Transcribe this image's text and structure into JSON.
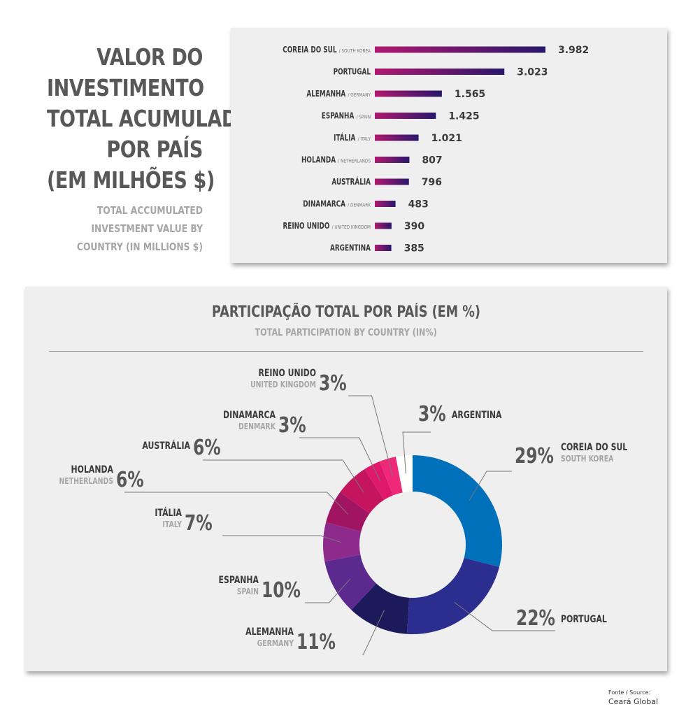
{
  "title": {
    "main_lines": [
      "VALOR DO",
      "INVESTIMENTO",
      "TOTAL ACUMULADO",
      "POR PAÍS",
      "(EM MILHÕES $)"
    ],
    "sub_lines": [
      "TOTAL ACCUMULATED",
      "INVESTMENT VALUE BY",
      "COUNTRY (IN MILLIONS $)"
    ]
  },
  "colors": {
    "bar_gradient_start": "#b0186f",
    "bar_gradient_end": "#28176a",
    "text_dark": "#585858",
    "text_light": "#a6a6a6"
  },
  "chart_data": [
    {
      "type": "bar",
      "orientation": "horizontal",
      "categories": [
        "COREIA DO SUL",
        "PORTUGAL",
        "ALEMANHA",
        "ESPANHA",
        "ITÁLIA",
        "HOLANDA",
        "AUSTRÁLIA",
        "DINAMARCA",
        "REINO UNIDO",
        "ARGENTINA"
      ],
      "category_subtitles": [
        "/ SOUTH KOREA",
        "",
        "/ GERMANY",
        "/ SPAIN",
        "/ ITALY",
        "/ NETHERLANDS",
        "",
        "/ DENMARK",
        "/ UNITED KINGDOM",
        ""
      ],
      "values": [
        3982,
        3023,
        1565,
        1425,
        1021,
        807,
        796,
        483,
        390,
        385
      ],
      "value_labels": [
        "3.982",
        "3.023",
        "1.565",
        "1.425",
        "1.021",
        "807",
        "796",
        "483",
        "390",
        "385"
      ],
      "xlim": [
        0,
        3982
      ],
      "grid": false
    },
    {
      "type": "pie",
      "style": "donut",
      "title": "PARTICIPAÇÃO TOTAL POR PAÍS (EM %)",
      "subtitle": "TOTAL PARTICIPATION BY COUNTRY (IN%)",
      "slices": [
        {
          "name": "COREIA DO SUL",
          "subname": "SOUTH KOREA",
          "label": "29%",
          "value": 29,
          "color": "#0070bb"
        },
        {
          "name": "PORTUGAL",
          "subname": "",
          "label": "22%",
          "value": 22,
          "color": "#2b2e8e"
        },
        {
          "name": "ALEMANHA",
          "subname": "GERMANY",
          "label": "11%",
          "value": 11,
          "color": "#1d1a5c"
        },
        {
          "name": "ESPANHA",
          "subname": "SPAIN",
          "label": "10%",
          "value": 10,
          "color": "#5c2a8e"
        },
        {
          "name": "ITÁLIA",
          "subname": "ITALY",
          "label": "7%",
          "value": 7,
          "color": "#8e2a8c"
        },
        {
          "name": "HOLANDA",
          "subname": "NETHERLANDS",
          "label": "6%",
          "value": 6,
          "color": "#a11462"
        },
        {
          "name": "AUSTRÁLIA",
          "subname": "",
          "label": "6%",
          "value": 6,
          "color": "#c4155e"
        },
        {
          "name": "DINAMARCA",
          "subname": "DENMARK",
          "label": "3%",
          "value": 3,
          "color": "#e0186c"
        },
        {
          "name": "REINO UNIDO",
          "subname": "UNITED KINGDOM",
          "label": "3%",
          "value": 3,
          "color": "#f0287a"
        },
        {
          "name": "ARGENTINA",
          "subname": "",
          "label": "3%",
          "value": 3,
          "color": "#ffffff"
        }
      ],
      "legend": "none"
    }
  ],
  "source": {
    "label": "Fonte / Source:",
    "name": "Ceará Global"
  }
}
